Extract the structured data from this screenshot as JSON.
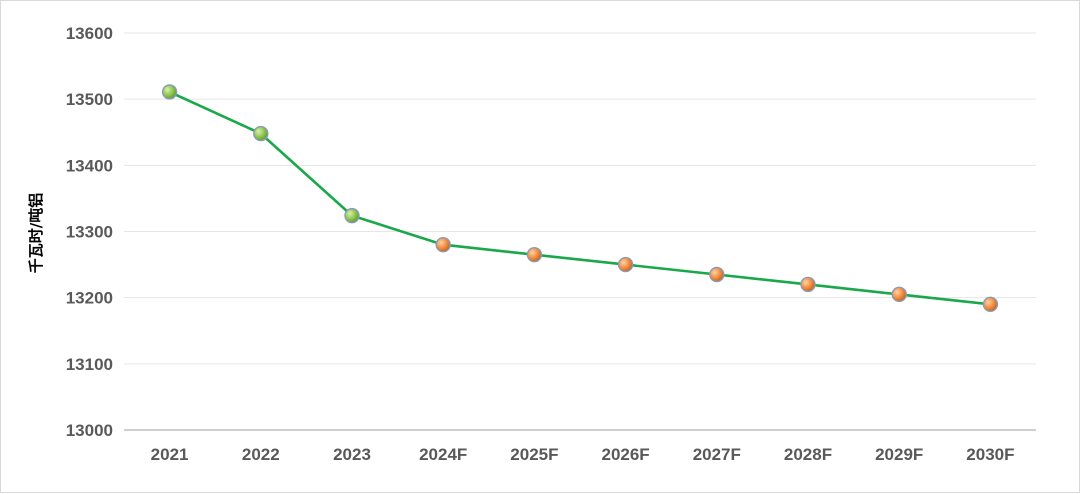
{
  "chart_data": {
    "type": "line",
    "title": "",
    "xlabel": "",
    "ylabel": "千瓦时/吨铝",
    "categories": [
      "2021",
      "2022",
      "2023",
      "2024F",
      "2025F",
      "2026F",
      "2027F",
      "2028F",
      "2029F",
      "2030F"
    ],
    "series": [
      {
        "values": [
          13511,
          13448,
          13324,
          13280,
          13265,
          13250,
          13235,
          13220,
          13205,
          13190
        ]
      }
    ],
    "actual_count": 3,
    "ylim": [
      13000,
      13600
    ],
    "yticks": [
      13000,
      13100,
      13200,
      13300,
      13400,
      13500,
      13600
    ],
    "grid": true,
    "legend": "none",
    "colors": {
      "line": "#1aa84a",
      "actual_marker": "#8bc34a",
      "forecast_marker": "#f0893a",
      "marker_stroke": "#8a9bb5",
      "grid": "#e6e6e6",
      "axis": "#bfbfbf"
    }
  }
}
